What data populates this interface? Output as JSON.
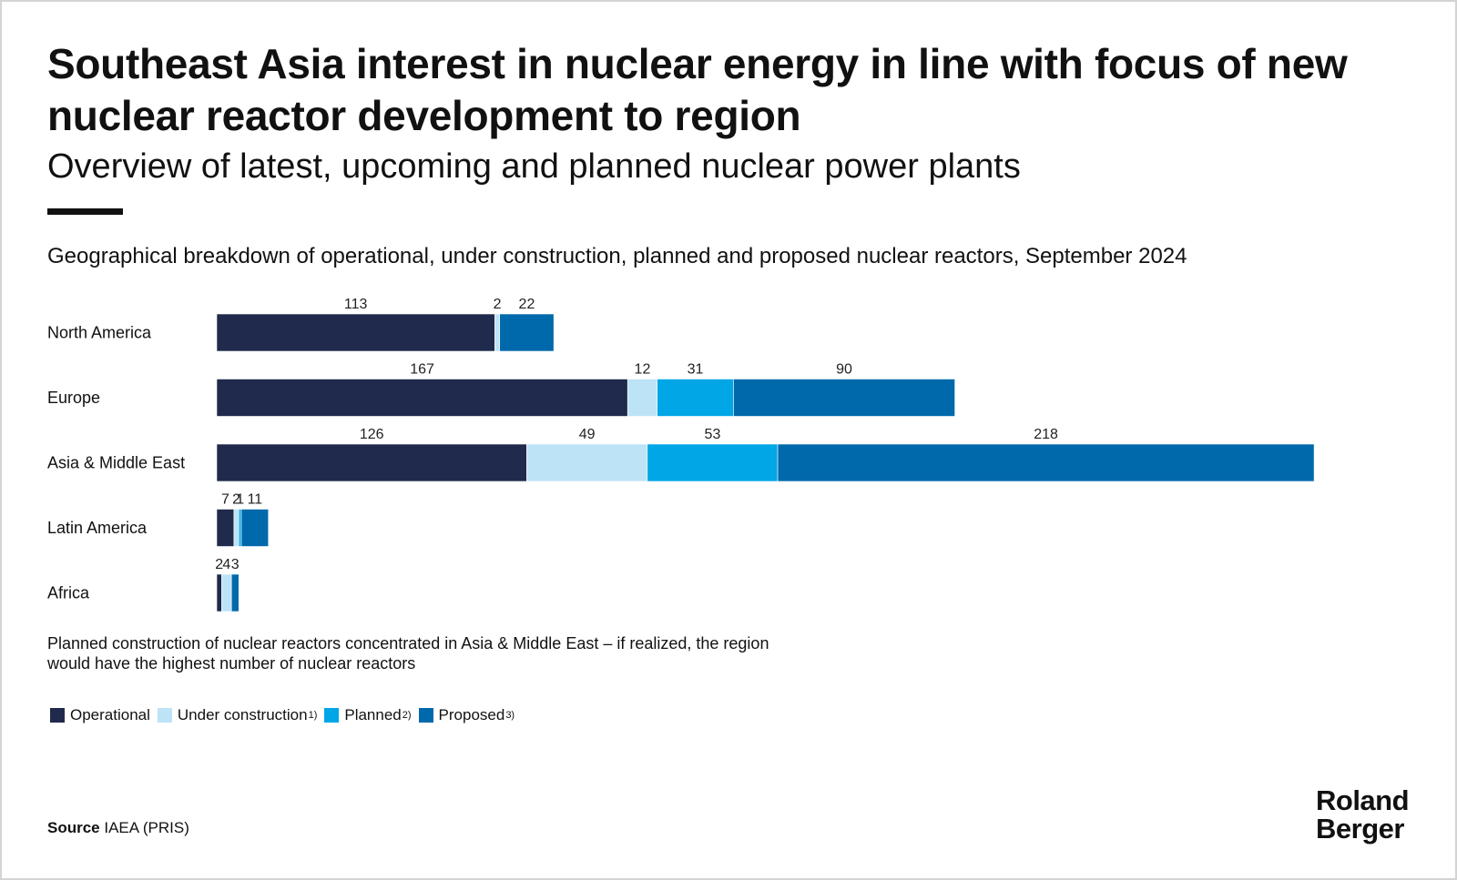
{
  "title": "Southeast Asia interest in nuclear energy in line with focus of new nuclear reactor development to region",
  "subtitle": "Overview of latest, upcoming and planned nuclear power plants",
  "chart_data": {
    "type": "bar",
    "orientation": "horizontal",
    "stacked": true,
    "title": "Geographical breakdown of operational, under construction, planned and proposed nuclear reactors, September 2024",
    "categories": [
      "North America",
      "Europe",
      "Asia & Middle East",
      "Latin America",
      "Africa"
    ],
    "series": [
      {
        "name": "Operational",
        "color": "#1f2a4c",
        "values": [
          113,
          167,
          126,
          7,
          2
        ]
      },
      {
        "name": "Under construction",
        "color": "#bde3f7",
        "values": [
          2,
          12,
          49,
          2,
          4
        ]
      },
      {
        "name": "Planned",
        "color": "#00a6e6",
        "values": [
          null,
          31,
          53,
          1,
          null
        ]
      },
      {
        "name": "Proposed",
        "color": "#0069ab",
        "values": [
          22,
          90,
          218,
          11,
          3
        ]
      }
    ],
    "grid": false,
    "legend": "bottom-left"
  },
  "note": "Planned construction of nuclear reactors concentrated in Asia & Middle East – if realized, the region would have the highest number of nuclear reactors",
  "legend": [
    {
      "label": "Operational",
      "sup": "",
      "color": "#1f2a4c"
    },
    {
      "label": "Under construction",
      "sup": "1)",
      "color": "#bde3f7"
    },
    {
      "label": "Planned",
      "sup": "2)",
      "color": "#00a6e6"
    },
    {
      "label": "Proposed",
      "sup": "3)",
      "color": "#0069ab"
    }
  ],
  "source": {
    "label": "Source",
    "text": "IAEA (PRIS)"
  },
  "logo": {
    "line1": "Roland",
    "line2": "Berger"
  }
}
